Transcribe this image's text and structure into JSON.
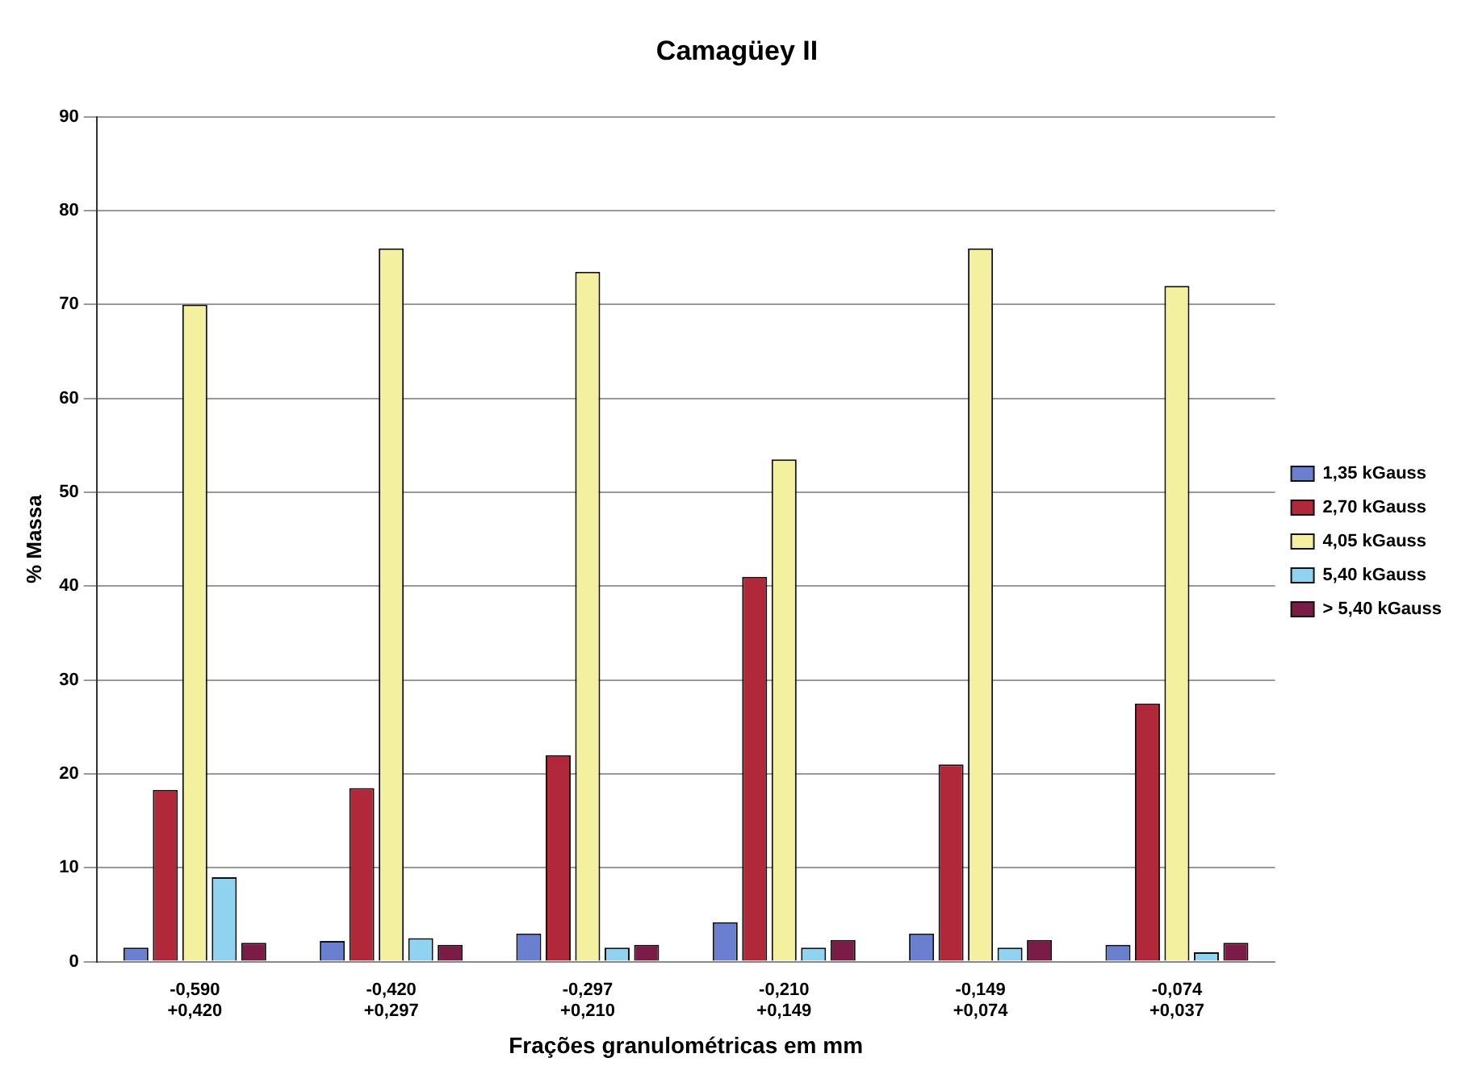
{
  "chart_data": {
    "type": "bar",
    "title": "Camagüey II",
    "xlabel": "Frações granulométricas em mm",
    "ylabel": "% Massa",
    "categories": [
      "-0,590\n+0,420",
      "-0,420\n+0,297",
      "-0,297\n+0,210",
      "-0,210\n+0,149",
      "-0,149\n+0,074",
      "-0,074\n+0,037"
    ],
    "series": [
      {
        "name": "1,35 kGauss",
        "color": "#6b7fd0",
        "values": [
          1.5,
          2.2,
          3,
          4.2,
          3,
          1.8
        ]
      },
      {
        "name": "2,70 kGauss",
        "color": "#b0283a",
        "values": [
          18.3,
          18.5,
          22,
          41,
          21,
          27.5
        ]
      },
      {
        "name": "4,05 kGauss",
        "color": "#f3f0a0",
        "values": [
          70,
          76,
          73.5,
          53.5,
          76,
          72
        ]
      },
      {
        "name": "5,40 kGauss",
        "color": "#8fd3f0",
        "values": [
          9,
          2.5,
          1.5,
          1.5,
          1.5,
          1
        ]
      },
      {
        "name": "> 5,40 kGauss",
        "color": "#7a1c45",
        "values": [
          2,
          1.8,
          1.8,
          2.3,
          2.3,
          2
        ]
      }
    ],
    "ylim": [
      0,
      90
    ],
    "yticks": [
      0,
      10,
      20,
      30,
      40,
      50,
      60,
      70,
      80,
      90
    ],
    "grid": "y",
    "legend": "right"
  }
}
